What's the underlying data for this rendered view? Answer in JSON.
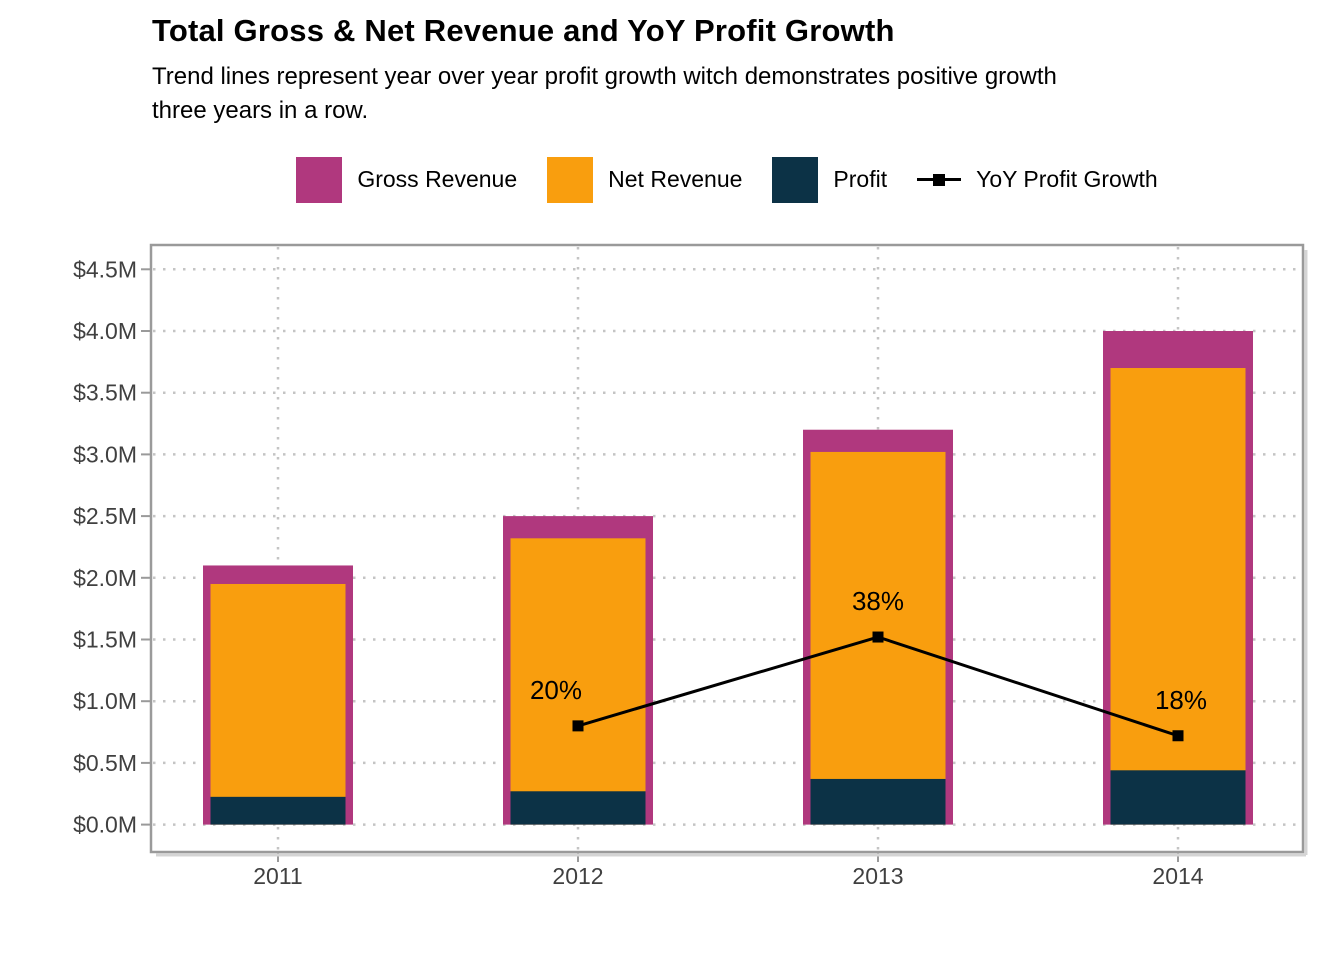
{
  "header": {
    "title": "Total Gross & Net Revenue and YoY Profit Growth",
    "subtitle_lines": [
      "Trend lines represent year over year profit growth witch demonstrates positive growth",
      "three years in a row."
    ]
  },
  "legend": {
    "position": "top",
    "items": [
      {
        "label": "Gross Revenue",
        "color": "#b0387e",
        "glyph": "swatch"
      },
      {
        "label": "Net Revenue",
        "color": "#f99e0e",
        "glyph": "swatch"
      },
      {
        "label": "Profit",
        "color": "#0c3246",
        "glyph": "swatch"
      },
      {
        "label": "YoY Profit Growth",
        "color": "#000000",
        "glyph": "line-square-marker"
      }
    ]
  },
  "chart_data": {
    "type": "bar",
    "title": "Total Gross & Net Revenue and YoY Profit Growth",
    "xlabel": "",
    "ylabel": "",
    "categories": [
      "2011",
      "2012",
      "2013",
      "2014"
    ],
    "series": [
      {
        "name": "Gross Revenue",
        "color": "#b0387e",
        "values": [
          2.1,
          2.5,
          3.2,
          4.0
        ]
      },
      {
        "name": "Net Revenue",
        "color": "#f99e0e",
        "values": [
          1.95,
          2.32,
          3.02,
          3.7
        ]
      },
      {
        "name": "Profit",
        "color": "#0c3246",
        "values": [
          0.225,
          0.27,
          0.37,
          0.44
        ]
      }
    ],
    "line_series": {
      "name": "YoY Profit Growth",
      "color": "#000000",
      "growth_percent": [
        null,
        20,
        38,
        18
      ],
      "point_labels": [
        "",
        "20%",
        "38%",
        "18%"
      ],
      "m_per_percent": 0.04
    },
    "ylim": [
      0,
      4.5
    ],
    "y_ticks": [
      {
        "value": 0.0,
        "label": "$0.0M"
      },
      {
        "value": 0.5,
        "label": "$0.5M"
      },
      {
        "value": 1.0,
        "label": "$1.0M"
      },
      {
        "value": 1.5,
        "label": "$1.5M"
      },
      {
        "value": 2.0,
        "label": "$2.0M"
      },
      {
        "value": 2.5,
        "label": "$2.5M"
      },
      {
        "value": 3.0,
        "label": "$3.0M"
      },
      {
        "value": 3.5,
        "label": "$3.5M"
      },
      {
        "value": 4.0,
        "label": "$4.0M"
      },
      {
        "value": 4.5,
        "label": "$4.5M"
      }
    ],
    "grid": "dotted",
    "legend_position": "top",
    "style_colors": {
      "grid": "#c4c4c4",
      "panel_border": "#9a9a9a",
      "axis_text": "#404040",
      "background": "#ffffff"
    }
  }
}
